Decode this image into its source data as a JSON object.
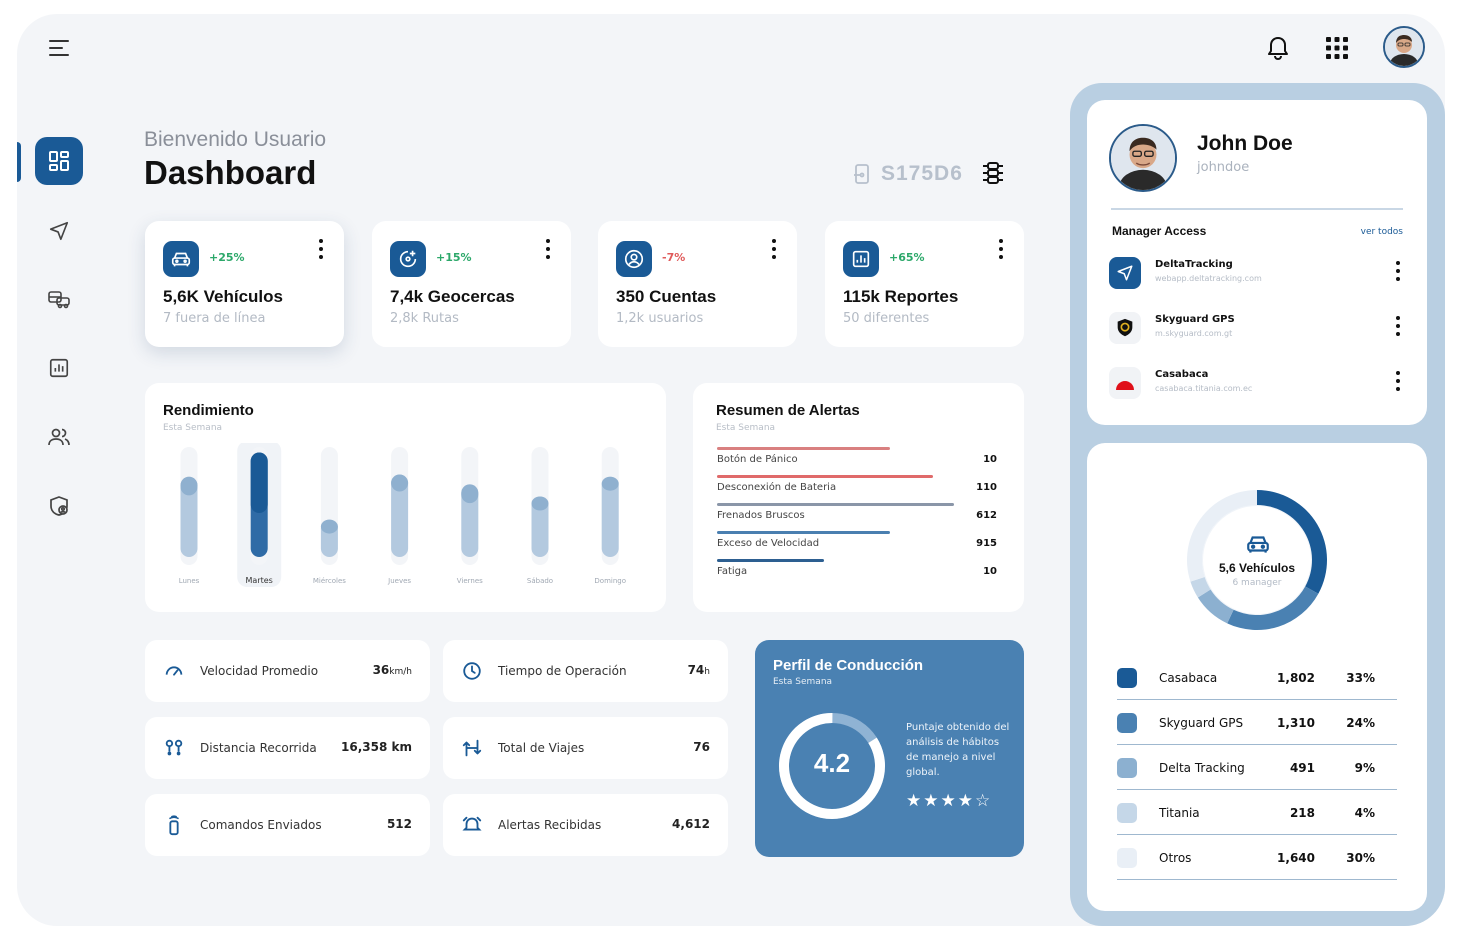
{
  "header": {
    "welcome": "Bienvenido Usuario",
    "title": "Dashboard",
    "device_code": "S175D6"
  },
  "icons": {
    "menu": "menu-icon",
    "notifications": "bell-icon",
    "apps": "grid-icon",
    "device": "device-icon",
    "filter": "sliders-icon"
  },
  "sidebar": {
    "items": [
      {
        "icon": "dashboard-icon",
        "active": true
      },
      {
        "icon": "navigation-icon",
        "active": false
      },
      {
        "icon": "vehicles-icon",
        "active": false
      },
      {
        "icon": "reports-icon",
        "active": false
      },
      {
        "icon": "users-icon",
        "active": false
      },
      {
        "icon": "security-icon",
        "active": false
      }
    ]
  },
  "stats": [
    {
      "icon": "car-icon",
      "change": "+25%",
      "change_color": "#2ca86a",
      "value": "5,6K Vehículos",
      "sub": "7 fuera de línea"
    },
    {
      "icon": "geofence-icon",
      "change": "+15%",
      "change_color": "#2ca86a",
      "value": "7,4k Geocercas",
      "sub": "2,8k Rutas"
    },
    {
      "icon": "account-icon",
      "change": "-7%",
      "change_color": "#e05a5a",
      "value": "350 Cuentas",
      "sub": "1,2k usuarios"
    },
    {
      "icon": "report-icon",
      "change": "+65%",
      "change_color": "#2ca86a",
      "value": "115k Reportes",
      "sub": "50 diferentes"
    }
  ],
  "rendimiento": {
    "title": "Rendimiento",
    "subtitle": "Esta Semana",
    "selected_day": "Martes"
  },
  "chart_data": {
    "type": "bar",
    "title": "Rendimiento",
    "subtitle": "Esta Semana",
    "categories": [
      "Lunes",
      "Martes",
      "Miércoles",
      "Jueves",
      "Viernes",
      "Sábado",
      "Domingo"
    ],
    "series": [
      {
        "values": [
          0.17,
          0.55,
          0.0,
          0.11,
          0.17,
          0.0,
          0.0
        ]
      },
      {
        "values": [
          0.73,
          0.95,
          0.34,
          0.75,
          0.66,
          0.55,
          0.73
        ]
      }
    ],
    "ylim": [
      0,
      1
    ]
  },
  "alertas": {
    "title": "Resumen de Alertas",
    "subtitle": "Esta Semana",
    "rows": [
      {
        "label": "Botón de Pánico",
        "value": "10",
        "fill": 0.73,
        "color": "#d98080"
      },
      {
        "label": "Desconexión de Bateria",
        "value": "110",
        "fill": 0.91,
        "color": "#e06a6a"
      },
      {
        "label": "Frenados Bruscos",
        "value": "612",
        "fill": 1.0,
        "color": "#8a96a8"
      },
      {
        "label": "Exceso de Velocidad",
        "value": "915",
        "fill": 0.73,
        "color": "#4a7fb0"
      },
      {
        "label": "Fatiga",
        "value": "10",
        "fill": 0.45,
        "color": "#2d5f91"
      }
    ]
  },
  "metrics": [
    {
      "icon": "speedometer-icon",
      "label": "Velocidad Promedio",
      "value": "36",
      "unit": "km/h"
    },
    {
      "icon": "clock-icon",
      "label": "Tiempo de Operación",
      "value": "74",
      "unit": "h"
    },
    {
      "icon": "distance-icon",
      "label": "Distancia Recorrida",
      "value": "16,358 km",
      "unit": ""
    },
    {
      "icon": "trips-icon",
      "label": "Total de Viajes",
      "value": "76",
      "unit": ""
    },
    {
      "icon": "command-icon",
      "label": "Comandos Enviados",
      "value": "512",
      "unit": ""
    },
    {
      "icon": "alarm-icon",
      "label": "Alertas Recibidas",
      "value": "4,612",
      "unit": ""
    }
  ],
  "perfil": {
    "title": "Perfil de Conducción",
    "subtitle": "Esta Semana",
    "score": "4.2",
    "score_fraction": 0.84,
    "description": "Puntaje obtenido del análisis de hábitos de manejo a nivel global.",
    "stars_filled": 4,
    "stars_total": 5
  },
  "profile": {
    "name": "John Doe",
    "username": "johndoe",
    "section_title": "Manager Access",
    "view_all": "ver todos",
    "accounts": [
      {
        "name": "DeltaTracking",
        "url": "webapp.deltatracking.com",
        "icon": "deltatracking-logo"
      },
      {
        "name": "Skyguard GPS",
        "url": "m.skyguard.com.gt",
        "icon": "skyguard-logo"
      },
      {
        "name": "Casabaca",
        "url": "casabaca.titania.com.ec",
        "icon": "casabaca-logo"
      }
    ]
  },
  "vehicles_summary": {
    "title": "5,6 Vehículos",
    "subtitle": "6 manager",
    "rows": [
      {
        "name": "Casabaca",
        "value": "1,802",
        "pct": "33%",
        "color": "#1a5a96",
        "share": 0.33
      },
      {
        "name": "Skyguard GPS",
        "value": "1,310",
        "pct": "24%",
        "color": "#4a81b2",
        "share": 0.24
      },
      {
        "name": "Delta Tracking",
        "value": "491",
        "pct": "9%",
        "color": "#8cb0d0",
        "share": 0.09
      },
      {
        "name": "Titania",
        "value": "218",
        "pct": "4%",
        "color": "#c5d7e8",
        "share": 0.04
      },
      {
        "name": "Otros",
        "value": "1,640",
        "pct": "30%",
        "color": "#e9eff6",
        "share": 0.3
      }
    ]
  }
}
